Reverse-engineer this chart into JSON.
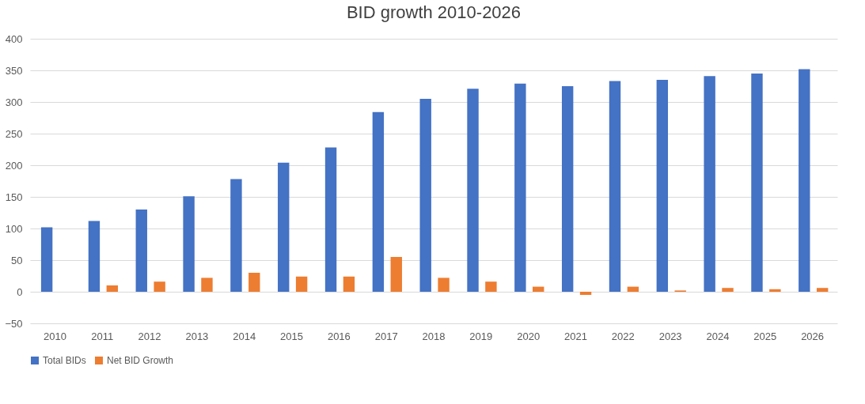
{
  "chart_data": {
    "type": "bar",
    "title": "BID growth 2010-2026",
    "categories": [
      "2010",
      "2011",
      "2012",
      "2013",
      "2014",
      "2015",
      "2016",
      "2017",
      "2018",
      "2019",
      "2020",
      "2021",
      "2022",
      "2023",
      "2024",
      "2025",
      "2026"
    ],
    "series": [
      {
        "name": "Total BIDs",
        "color": "#4472c4",
        "values": [
          102,
          112,
          130,
          151,
          178,
          204,
          228,
          284,
          305,
          321,
          329,
          325,
          333,
          335,
          341,
          345,
          352
        ]
      },
      {
        "name": "Net BID Growth",
        "color": "#ed7d31",
        "values": [
          null,
          10,
          16,
          22,
          30,
          24,
          24,
          55,
          22,
          16,
          8,
          -5,
          8,
          2,
          6,
          4,
          6
        ]
      }
    ],
    "ylim": [
      -50,
      400
    ],
    "yticks": [
      -50,
      0,
      50,
      100,
      150,
      200,
      250,
      300,
      350,
      400
    ],
    "grid": "y",
    "legend": "bottom"
  }
}
